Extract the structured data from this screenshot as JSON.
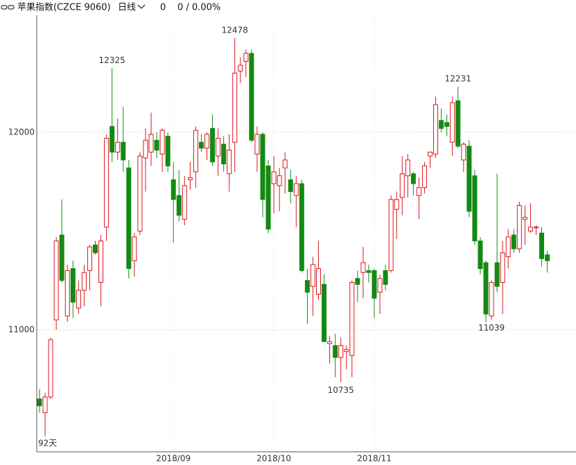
{
  "header": {
    "title": "苹果指数(CZCE 9060)",
    "period": "日线",
    "price": "0",
    "change": "0 / 0.00%"
  },
  "chart_data": {
    "type": "candlestick",
    "categories": [
      null,
      null,
      null,
      null,
      null,
      null,
      null,
      null,
      null,
      null,
      null,
      null,
      null,
      null,
      null,
      null,
      null,
      null,
      null,
      null,
      null,
      null,
      null,
      null,
      "2018/09",
      null,
      null,
      null,
      null,
      null,
      null,
      null,
      null,
      null,
      null,
      null,
      null,
      null,
      null,
      null,
      null,
      null,
      "2018/10",
      null,
      null,
      null,
      null,
      null,
      null,
      null,
      null,
      null,
      null,
      null,
      null,
      null,
      null,
      null,
      null,
      null,
      "2018/11",
      null,
      null,
      null,
      null,
      null,
      null,
      null,
      null,
      null,
      null,
      null,
      null,
      null,
      null,
      null,
      null,
      null,
      null,
      null,
      null,
      null,
      null,
      null,
      null,
      null,
      null,
      null,
      null,
      null,
      null,
      null
    ],
    "open": [
      10650,
      10580,
      10660,
      11050,
      11480,
      11070,
      11310,
      11110,
      11200,
      11300,
      11430,
      11240,
      11520,
      12030,
      11900,
      11950,
      11820,
      11350,
      11500,
      11870,
      11900,
      11960,
      11890,
      11980,
      11760,
      11680,
      11560,
      11760,
      11800,
      11950,
      11920,
      12020,
      11880,
      11940,
      11790,
      11950,
      12310,
      12360,
      12400,
      11890,
      11990,
      11830,
      11740,
      11730,
      11820,
      11760,
      11680,
      11740,
      11250,
      11220,
      11180,
      11230,
      10930,
      10920,
      10860,
      10890,
      10870,
      11260,
      11290,
      11300,
      11300,
      11190,
      11300,
      11300,
      11610,
      11670,
      11780,
      11790,
      11680,
      11720,
      11880,
      11890,
      12060,
      12050,
      11950,
      12160,
      11860,
      11930,
      11780,
      11450,
      11340,
      11070,
      11340,
      11240,
      11370,
      11480,
      11410,
      11560,
      11500,
      11520,
      11490,
      11380
    ],
    "high": [
      10700,
      10680,
      10960,
      11470,
      11660,
      11330,
      11350,
      11250,
      11330,
      11430,
      11450,
      11480,
      11990,
      12325,
      12070,
      12130,
      11860,
      11490,
      11900,
      12020,
      12100,
      12000,
      12020,
      12000,
      11850,
      11810,
      11780,
      11850,
      12030,
      11990,
      12000,
      12090,
      12020,
      11980,
      11990,
      12478,
      12380,
      12420,
      12420,
      12030,
      12000,
      11860,
      11880,
      11820,
      11900,
      11810,
      11780,
      11760,
      11310,
      11370,
      11450,
      11280,
      10970,
      10980,
      10960,
      10920,
      11250,
      11300,
      11420,
      11330,
      11310,
      11280,
      11330,
      11680,
      11700,
      11880,
      11890,
      11800,
      11770,
      11850,
      11900,
      12180,
      12120,
      12090,
      12180,
      12231,
      11950,
      11960,
      11810,
      11470,
      11350,
      11250,
      11790,
      11450,
      11510,
      11510,
      11650,
      11630,
      11640,
      11530,
      11520,
      11400
    ],
    "low": [
      10580,
      10460,
      10650,
      11000,
      11240,
      11040,
      11060,
      11080,
      11120,
      11200,
      11380,
      11120,
      11450,
      11850,
      11860,
      11800,
      11260,
      11270,
      11480,
      11700,
      11830,
      11870,
      11800,
      11800,
      11440,
      11550,
      11530,
      11710,
      11720,
      11900,
      11860,
      11830,
      11780,
      11800,
      11700,
      11800,
      12250,
      12280,
      11950,
      11800,
      11570,
      11490,
      11590,
      11600,
      11690,
      11640,
      11520,
      11290,
      11030,
      11070,
      11150,
      10940,
      10830,
      10760,
      10735,
      10800,
      10760,
      11140,
      11160,
      11240,
      11060,
      11080,
      11200,
      11290,
      11460,
      11580,
      11670,
      11680,
      11560,
      11690,
      11820,
      11870,
      12000,
      11980,
      11880,
      11920,
      11800,
      11570,
      11430,
      11280,
      11039,
      11050,
      11190,
      11080,
      11310,
      11390,
      11390,
      11430,
      11490,
      11480,
      11320,
      11290
    ],
    "close": [
      10615,
      10660,
      10950,
      11450,
      11250,
      11300,
      11140,
      11200,
      11290,
      11420,
      11390,
      11450,
      11970,
      11900,
      11950,
      11860,
      11310,
      11470,
      11880,
      11960,
      11990,
      11910,
      12010,
      11830,
      11660,
      11580,
      11730,
      11770,
      12010,
      11920,
      11990,
      11850,
      11970,
      11840,
      11910,
      12300,
      12340,
      12400,
      11960,
      11990,
      11660,
      11510,
      11800,
      11780,
      11860,
      11700,
      11740,
      11300,
      11190,
      11330,
      11310,
      10940,
      10940,
      10860,
      10920,
      10900,
      11240,
      11230,
      11340,
      11290,
      11160,
      11260,
      11230,
      11660,
      11660,
      11790,
      11860,
      11740,
      11720,
      11830,
      11900,
      12140,
      12020,
      12030,
      12150,
      11930,
      11940,
      11600,
      11450,
      11310,
      11080,
      11240,
      11220,
      11390,
      11470,
      11410,
      11630,
      11570,
      11520,
      11520,
      11360,
      11350
    ],
    "high_labels": [
      null,
      null,
      null,
      null,
      null,
      null,
      null,
      null,
      null,
      null,
      null,
      null,
      null,
      "12325",
      null,
      null,
      null,
      null,
      null,
      null,
      null,
      null,
      null,
      null,
      null,
      null,
      null,
      null,
      null,
      null,
      null,
      null,
      null,
      null,
      null,
      "12478",
      null,
      null,
      null,
      null,
      null,
      null,
      null,
      null,
      null,
      null,
      null,
      null,
      null,
      null,
      null,
      null,
      null,
      null,
      null,
      null,
      null,
      null,
      null,
      null,
      null,
      null,
      null,
      null,
      null,
      null,
      null,
      null,
      null,
      null,
      null,
      null,
      null,
      null,
      null,
      "12231",
      null,
      null,
      null,
      null,
      null,
      null,
      null,
      null,
      null,
      null,
      null,
      null,
      null,
      null,
      null,
      null
    ],
    "low_labels": [
      null,
      null,
      null,
      null,
      null,
      null,
      null,
      null,
      null,
      null,
      null,
      null,
      null,
      null,
      null,
      null,
      null,
      null,
      null,
      null,
      null,
      null,
      null,
      null,
      null,
      null,
      null,
      null,
      null,
      null,
      null,
      null,
      null,
      null,
      null,
      null,
      null,
      null,
      null,
      null,
      null,
      null,
      null,
      null,
      null,
      null,
      null,
      null,
      null,
      null,
      null,
      null,
      null,
      null,
      "10735",
      null,
      null,
      null,
      null,
      null,
      null,
      null,
      null,
      null,
      null,
      null,
      null,
      null,
      null,
      null,
      null,
      null,
      null,
      null,
      null,
      null,
      null,
      null,
      null,
      null,
      null,
      "11039",
      null,
      null,
      null,
      null,
      null,
      null,
      null,
      null,
      null,
      null
    ],
    "period_label": "92天",
    "ylim": [
      10382,
      12593
    ],
    "yticks": [
      11000,
      12000
    ],
    "grid": true,
    "up_color": "#d9161b",
    "up_fill": "#ffffff",
    "down_color": "#138a13"
  }
}
